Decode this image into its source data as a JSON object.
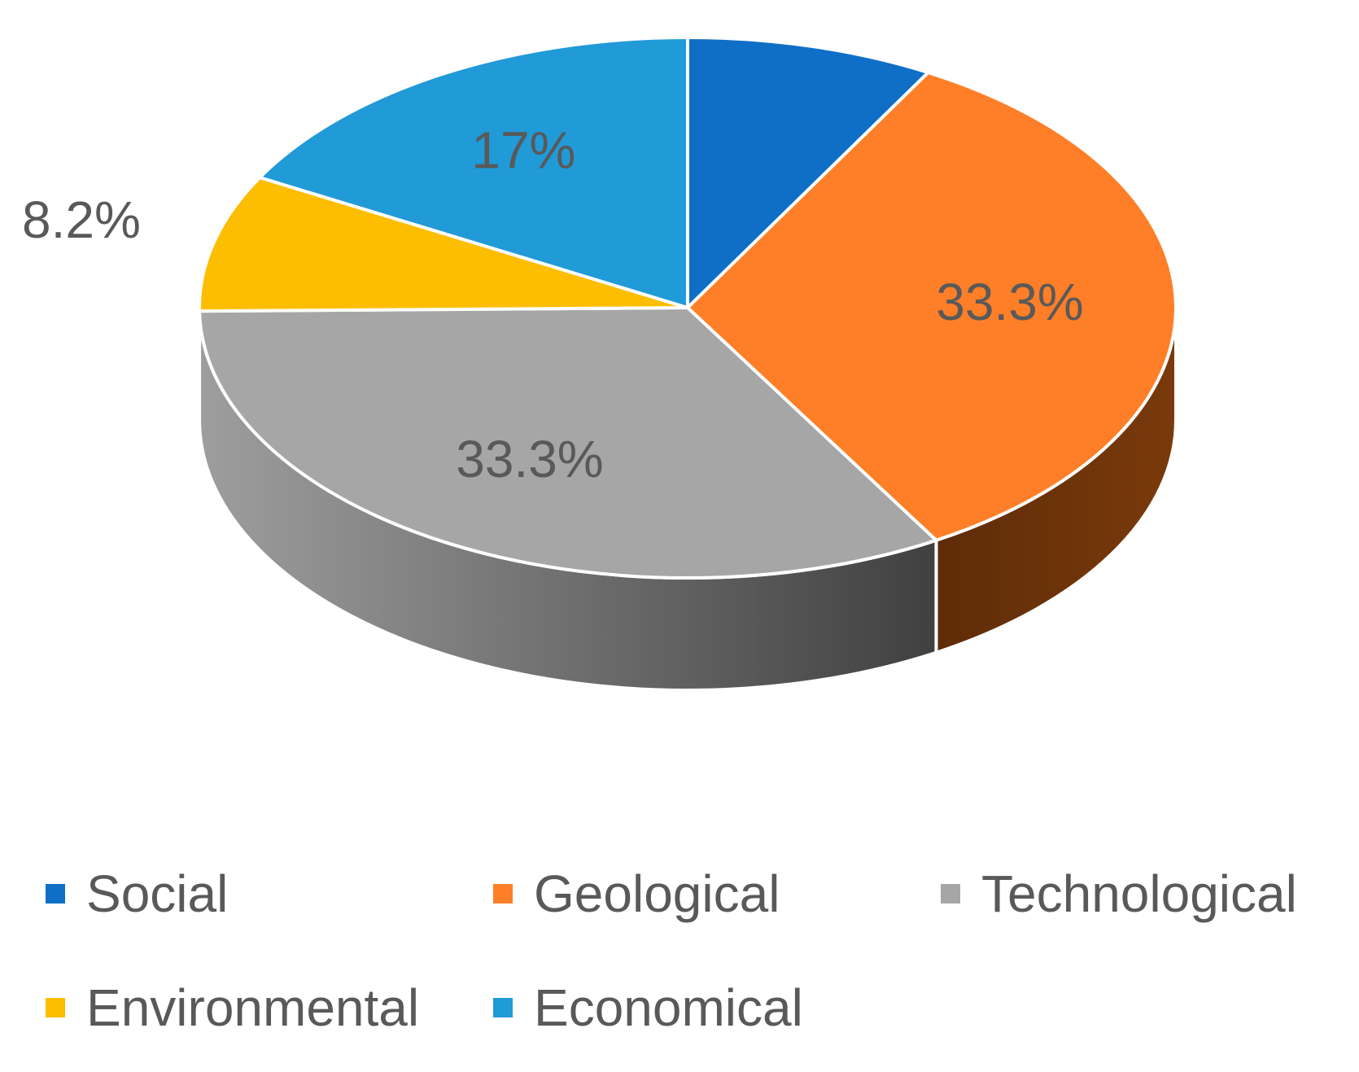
{
  "chart_data": {
    "type": "pie",
    "style": "3d",
    "title": "",
    "categories": [
      "Social",
      "Geological",
      "Technological",
      "Environmental",
      "Economical"
    ],
    "values": [
      8.2,
      33.3,
      33.3,
      8.2,
      17
    ],
    "data_labels": [
      "8.2",
      "33.3%",
      "33.3%",
      "8.2%",
      "17%"
    ],
    "colors": [
      "#0f6fc6",
      "#fe7f27",
      "#a6a6a6",
      "#fdbd00",
      "#219ad8"
    ],
    "legend_position": "bottom"
  }
}
